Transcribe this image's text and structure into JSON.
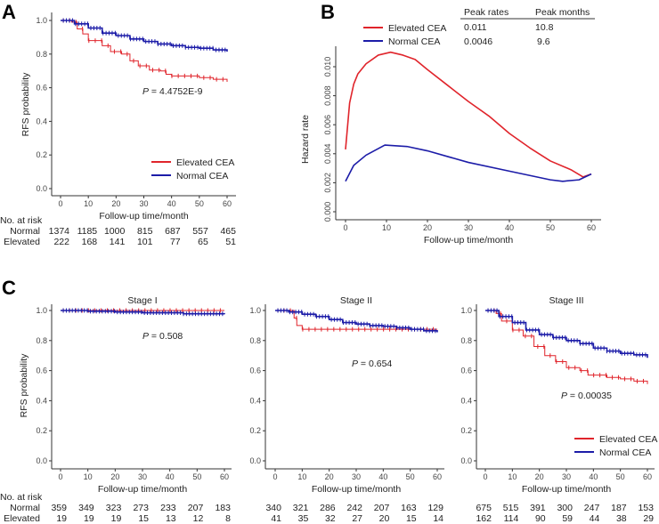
{
  "colors": {
    "elevated": "#e0242b",
    "normal": "#1c1ca8"
  },
  "chart_data": [
    {
      "panel": "A",
      "type": "line",
      "subtype": "kaplan-meier",
      "xlabel": "Follow-up time/month",
      "ylabel": "RFS probability",
      "xlim": [
        0,
        60
      ],
      "ylim": [
        0,
        1
      ],
      "xticks": [
        "0",
        "10",
        "20",
        "30",
        "40",
        "50",
        "60"
      ],
      "yticks": [
        "0.0",
        "0.2",
        "0.4",
        "0.6",
        "0.8",
        "1.0"
      ],
      "p_symbol": "P",
      "p_text": " = 4.4752E-9",
      "legend": {
        "placement": "bottom-right",
        "items": [
          "Elevated CEA",
          "Normal CEA"
        ]
      },
      "series": [
        {
          "name": "Elevated CEA",
          "color_key": "elevated",
          "points": [
            [
              0,
              1
            ],
            [
              4,
              0.99
            ],
            [
              6,
              0.95
            ],
            [
              8,
              0.92
            ],
            [
              10,
              0.88
            ],
            [
              15,
              0.85
            ],
            [
              18,
              0.815
            ],
            [
              22,
              0.8
            ],
            [
              25,
              0.76
            ],
            [
              28,
              0.73
            ],
            [
              32,
              0.705
            ],
            [
              36,
              0.7
            ],
            [
              38,
              0.68
            ],
            [
              40,
              0.67
            ],
            [
              50,
              0.66
            ],
            [
              55,
              0.65
            ],
            [
              60,
              0.635
            ]
          ]
        },
        {
          "name": "Normal CEA",
          "color_key": "normal",
          "points": [
            [
              0,
              1
            ],
            [
              5,
              0.98
            ],
            [
              10,
              0.955
            ],
            [
              15,
              0.925
            ],
            [
              20,
              0.91
            ],
            [
              25,
              0.89
            ],
            [
              30,
              0.875
            ],
            [
              35,
              0.86
            ],
            [
              40,
              0.85
            ],
            [
              45,
              0.84
            ],
            [
              50,
              0.835
            ],
            [
              55,
              0.825
            ],
            [
              60,
              0.815
            ]
          ]
        }
      ],
      "at_risk": {
        "title": "No. at risk",
        "rows": [
          {
            "label": "Normal",
            "values": [
              "1374",
              "1185",
              "1000",
              "815",
              "687",
              "557",
              "465"
            ]
          },
          {
            "label": "Elevated",
            "values": [
              "222",
              "168",
              "141",
              "101",
              "77",
              "65",
              "51"
            ]
          }
        ]
      }
    },
    {
      "panel": "B",
      "type": "line",
      "xlabel": "Follow-up time/month",
      "ylabel": "Hazard rate",
      "xlim": [
        0,
        60
      ],
      "ylim": [
        0,
        0.011
      ],
      "xticks": [
        "0",
        "10",
        "20",
        "30",
        "40",
        "50",
        "60"
      ],
      "yticks": [
        "0.000",
        "0.002",
        "0.004",
        "0.006",
        "0.008",
        "0.010"
      ],
      "legend": {
        "placement": "top",
        "items": [
          "Elevated CEA",
          "Normal CEA"
        ]
      },
      "peak_table": {
        "headers": [
          "Peak rates",
          "Peak months"
        ],
        "rows": [
          [
            "0.011",
            "10.8"
          ],
          [
            "0.0046",
            "9.6"
          ]
        ]
      },
      "series": [
        {
          "name": "Elevated CEA",
          "color_key": "elevated",
          "points": [
            [
              0,
              0.0043
            ],
            [
              1,
              0.0075
            ],
            [
              2,
              0.0088
            ],
            [
              3,
              0.0095
            ],
            [
              5,
              0.0102
            ],
            [
              8,
              0.0108
            ],
            [
              11,
              0.011
            ],
            [
              14,
              0.0108
            ],
            [
              17,
              0.0105
            ],
            [
              20,
              0.0098
            ],
            [
              25,
              0.0087
            ],
            [
              30,
              0.0076
            ],
            [
              35,
              0.0066
            ],
            [
              40,
              0.0054
            ],
            [
              45,
              0.0044
            ],
            [
              50,
              0.0035
            ],
            [
              55,
              0.0029
            ],
            [
              58,
              0.0024
            ],
            [
              60,
              0.0026
            ]
          ]
        },
        {
          "name": "Normal CEA",
          "color_key": "normal",
          "points": [
            [
              0,
              0.0021
            ],
            [
              2,
              0.0032
            ],
            [
              5,
              0.0039
            ],
            [
              9.6,
              0.0046
            ],
            [
              15,
              0.0045
            ],
            [
              20,
              0.0042
            ],
            [
              25,
              0.0038
            ],
            [
              30,
              0.0034
            ],
            [
              40,
              0.0028
            ],
            [
              50,
              0.0022
            ],
            [
              53,
              0.0021
            ],
            [
              57,
              0.0022
            ],
            [
              60,
              0.0026
            ]
          ]
        }
      ]
    },
    {
      "panel": "C",
      "subplots": [
        {
          "type": "line",
          "subtype": "kaplan-meier",
          "title": "Stage I",
          "xlabel": "Follow-up time/month",
          "ylabel": "RFS probability",
          "xlim": [
            0,
            60
          ],
          "ylim": [
            0,
            1
          ],
          "xticks": [
            "0",
            "10",
            "20",
            "30",
            "40",
            "50",
            "60"
          ],
          "yticks": [
            "0.0",
            "0.2",
            "0.4",
            "0.6",
            "0.8",
            "1.0"
          ],
          "p_symbol": "P",
          "p_text": " = 0.508",
          "series": [
            {
              "name": "Elevated CEA",
              "color_key": "elevated",
              "points": [
                [
                  0,
                  1
                ],
                [
                  60,
                  1
                ]
              ]
            },
            {
              "name": "Normal CEA",
              "color_key": "normal",
              "points": [
                [
                  0,
                  1
                ],
                [
                  10,
                  0.995
                ],
                [
                  20,
                  0.99
                ],
                [
                  30,
                  0.985
                ],
                [
                  45,
                  0.978
                ],
                [
                  60,
                  0.975
                ]
              ]
            }
          ],
          "at_risk": {
            "title": "No. at risk",
            "rows": [
              {
                "label": "Normal",
                "values": [
                  "359",
                  "349",
                  "323",
                  "273",
                  "233",
                  "207",
                  "183"
                ]
              },
              {
                "label": "Elevated",
                "values": [
                  "19",
                  "19",
                  "19",
                  "15",
                  "13",
                  "12",
                  "8"
                ]
              }
            ]
          }
        },
        {
          "type": "line",
          "subtype": "kaplan-meier",
          "title": "Stage II",
          "xlabel": "Follow-up time/month",
          "xlim": [
            0,
            60
          ],
          "ylim": [
            0,
            1
          ],
          "xticks": [
            "0",
            "10",
            "20",
            "30",
            "40",
            "50",
            "60"
          ],
          "yticks": [
            "0.0",
            "0.2",
            "0.4",
            "0.6",
            "0.8",
            "1.0"
          ],
          "p_symbol": "P",
          "p_text": " = 0.654",
          "series": [
            {
              "name": "Elevated CEA",
              "color_key": "elevated",
              "points": [
                [
                  0,
                  1
                ],
                [
                  5,
                  1
                ],
                [
                  7,
                  0.95
                ],
                [
                  8,
                  0.9
                ],
                [
                  10,
                  0.875
                ],
                [
                  60,
                  0.875
                ]
              ]
            },
            {
              "name": "Normal CEA",
              "color_key": "normal",
              "points": [
                [
                  0,
                  1
                ],
                [
                  5,
                  0.99
                ],
                [
                  10,
                  0.975
                ],
                [
                  15,
                  0.96
                ],
                [
                  20,
                  0.94
                ],
                [
                  25,
                  0.92
                ],
                [
                  30,
                  0.91
                ],
                [
                  35,
                  0.9
                ],
                [
                  40,
                  0.895
                ],
                [
                  45,
                  0.885
                ],
                [
                  50,
                  0.875
                ],
                [
                  55,
                  0.865
                ],
                [
                  60,
                  0.855
                ]
              ]
            }
          ],
          "at_risk": {
            "rows": [
              {
                "values": [
                  "340",
                  "321",
                  "286",
                  "242",
                  "207",
                  "163",
                  "129"
                ]
              },
              {
                "values": [
                  "41",
                  "35",
                  "32",
                  "27",
                  "20",
                  "15",
                  "14"
                ]
              }
            ]
          }
        },
        {
          "type": "line",
          "subtype": "kaplan-meier",
          "title": "Stage III",
          "xlabel": "Follow-up time/month",
          "xlim": [
            0,
            60
          ],
          "ylim": [
            0,
            1
          ],
          "xticks": [
            "0",
            "10",
            "20",
            "30",
            "40",
            "50",
            "60"
          ],
          "yticks": [
            "0.0",
            "0.2",
            "0.4",
            "0.6",
            "0.8",
            "1.0"
          ],
          "p_symbol": "P",
          "p_text": " = 0.00035",
          "legend": {
            "placement": "bottom-right",
            "items": [
              "Elevated CEA",
              "Normal CEA"
            ]
          },
          "series": [
            {
              "name": "Elevated CEA",
              "color_key": "elevated",
              "points": [
                [
                  0,
                  1
                ],
                [
                  4,
                  0.98
                ],
                [
                  6,
                  0.93
                ],
                [
                  10,
                  0.87
                ],
                [
                  14,
                  0.83
                ],
                [
                  18,
                  0.76
                ],
                [
                  22,
                  0.7
                ],
                [
                  26,
                  0.66
                ],
                [
                  30,
                  0.62
                ],
                [
                  35,
                  0.6
                ],
                [
                  38,
                  0.57
                ],
                [
                  45,
                  0.555
                ],
                [
                  50,
                  0.545
                ],
                [
                  55,
                  0.53
                ],
                [
                  60,
                  0.51
                ]
              ]
            },
            {
              "name": "Normal CEA",
              "color_key": "normal",
              "points": [
                [
                  0,
                  1
                ],
                [
                  5,
                  0.96
                ],
                [
                  10,
                  0.92
                ],
                [
                  15,
                  0.87
                ],
                [
                  20,
                  0.84
                ],
                [
                  25,
                  0.82
                ],
                [
                  30,
                  0.8
                ],
                [
                  35,
                  0.78
                ],
                [
                  40,
                  0.75
                ],
                [
                  45,
                  0.73
                ],
                [
                  50,
                  0.715
                ],
                [
                  55,
                  0.705
                ],
                [
                  60,
                  0.685
                ]
              ]
            }
          ],
          "at_risk": {
            "rows": [
              {
                "values": [
                  "675",
                  "515",
                  "391",
                  "300",
                  "247",
                  "187",
                  "153"
                ]
              },
              {
                "values": [
                  "162",
                  "114",
                  "90",
                  "59",
                  "44",
                  "38",
                  "29"
                ]
              }
            ]
          }
        }
      ]
    }
  ]
}
